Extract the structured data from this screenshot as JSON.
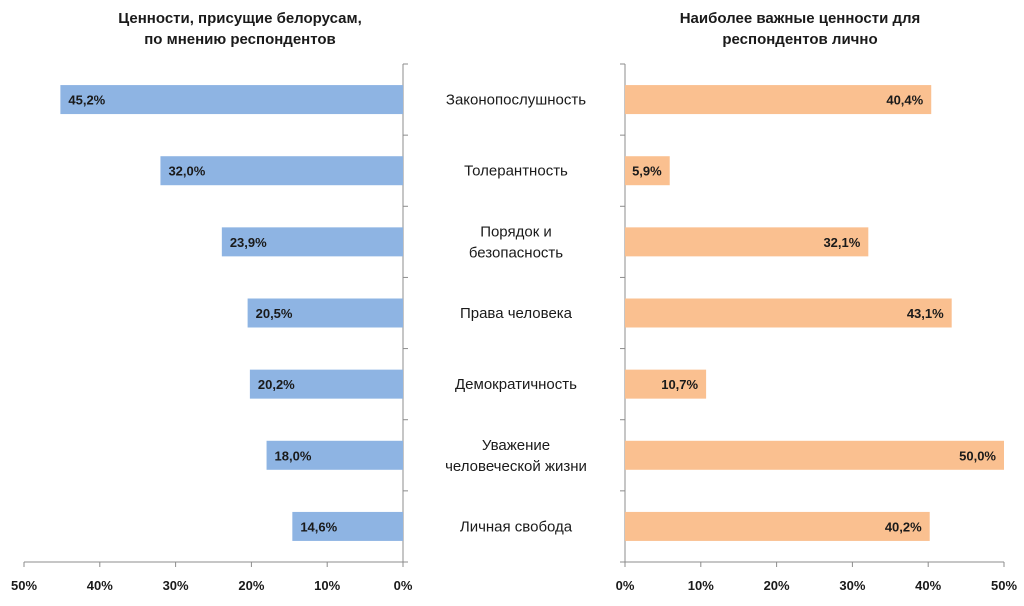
{
  "chart_data": [
    {
      "type": "bar",
      "orientation": "horizontal",
      "direction": "right-to-left",
      "title": "Ценности, присущие белорусам, по мнению респондентов",
      "categories": [
        "Законопослушность",
        "Толерантность",
        "Порядок и безопасность",
        "Права человека",
        "Демократичность",
        "Уважение человеческой жизни",
        "Личная свобода"
      ],
      "values": [
        45.2,
        32.0,
        23.9,
        20.5,
        20.2,
        18.0,
        14.6
      ],
      "value_labels": [
        "45,2%",
        "32,0%",
        "23,9%",
        "20,5%",
        "20,2%",
        "18,0%",
        "14,6%"
      ],
      "xlim": [
        0,
        50
      ],
      "ticks": [
        "0%",
        "10%",
        "20%",
        "30%",
        "40%",
        "50%"
      ],
      "color": "#8eb4e3"
    },
    {
      "type": "bar",
      "orientation": "horizontal",
      "direction": "left-to-right",
      "title": "Наиболее важные ценности для респондентов лично",
      "categories": [
        "Законопослушность",
        "Толерантность",
        "Порядок и безопасность",
        "Права человека",
        "Демократичность",
        "Уважение человеческой жизни",
        "Личная свобода"
      ],
      "values": [
        40.4,
        5.9,
        32.1,
        43.1,
        10.7,
        50.0,
        40.2
      ],
      "value_labels": [
        "40,4%",
        "5,9%",
        "32,1%",
        "43,1%",
        "10,7%",
        "50,0%",
        "40,2%"
      ],
      "xlim": [
        0,
        50
      ],
      "ticks": [
        "0%",
        "10%",
        "20%",
        "30%",
        "40%",
        "50%"
      ],
      "color": "#fac090"
    }
  ],
  "titles": {
    "left_line1": "Ценности, присущие белорусам,",
    "left_line2": "по мнению респондентов",
    "right_line1": "Наиболее важные ценности для",
    "right_line2": "респондентов лично"
  },
  "category_lines": [
    [
      "Законопослушность"
    ],
    [
      "Толерантность"
    ],
    [
      "Порядок и",
      "безопасность"
    ],
    [
      "Права человека"
    ],
    [
      "Демократичность"
    ],
    [
      "Уважение",
      "человеческой жизни"
    ],
    [
      "Личная свобода"
    ]
  ]
}
